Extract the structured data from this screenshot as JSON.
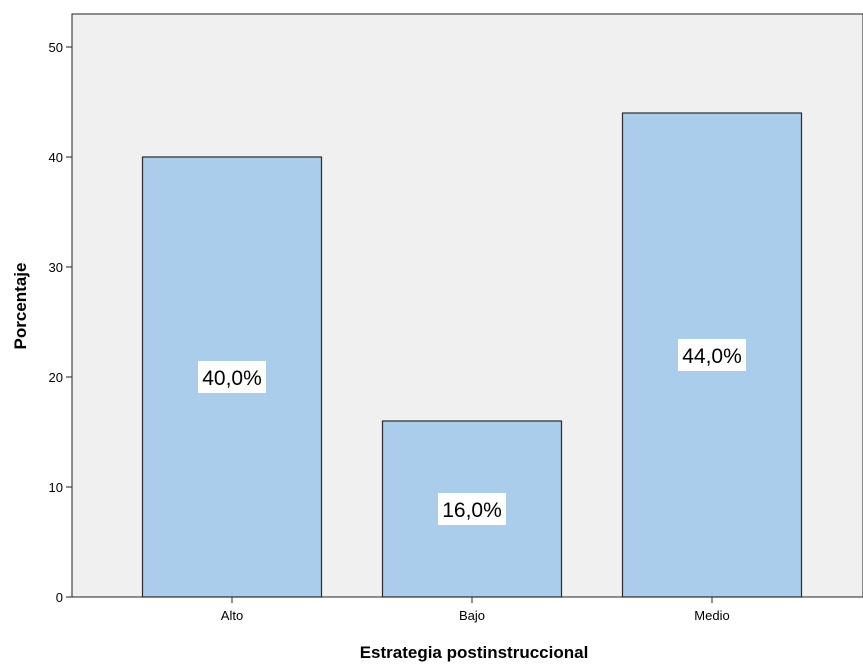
{
  "chart_data": {
    "type": "bar",
    "categories": [
      "Alto",
      "Bajo",
      "Medio"
    ],
    "values": [
      40.0,
      16.0,
      44.0
    ],
    "data_labels": [
      "40,0%",
      "16,0%",
      "44,0%"
    ],
    "xlabel": "Estrategia postinstruccional",
    "ylabel": "Porcentaje",
    "ylim": [
      0,
      50
    ],
    "yticks": [
      0,
      10,
      20,
      30,
      40,
      50
    ],
    "grid": false,
    "legend": "none",
    "colors": {
      "bar_fill": "#a9cdeb",
      "bar_stroke": "#2b2b2b",
      "plot_background": "#f0f0f0",
      "axis": "#222222",
      "label_box": "#ffffff"
    }
  }
}
